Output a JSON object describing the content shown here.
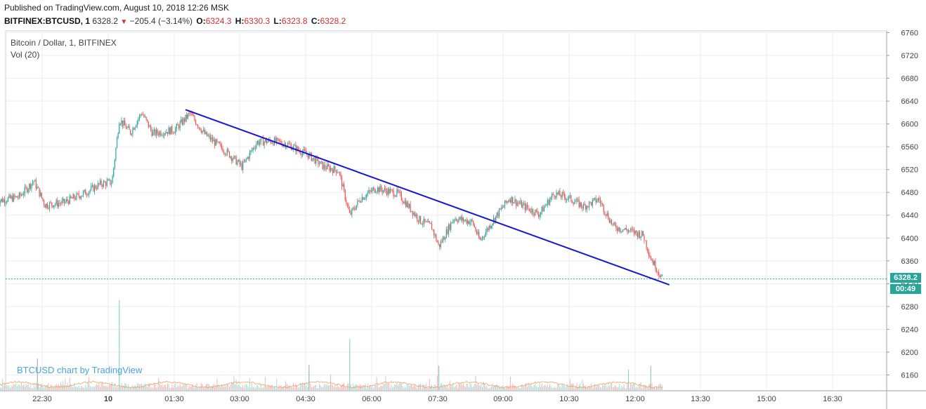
{
  "published": "Published on TradingView.com, August 10, 2018 12:26 MSK",
  "header": {
    "symbol": "BITFINEX:BTCUSD, 1",
    "last": "6328.2",
    "change": "−205.4 (−3.14%)",
    "open_label": "O:",
    "open": "6324.3",
    "high_label": "H:",
    "high": "6330.3",
    "low_label": "L:",
    "low": "6323.8",
    "close_label": "C:",
    "close": "6328.2"
  },
  "legend": {
    "series": "Bitcoin / Dollar, 1, BITFINEX",
    "volume": "Vol (20)"
  },
  "watermark": "BTCUSD chart by TradingView",
  "price_badge": "6328.2",
  "countdown_badge": "00:49",
  "colors": {
    "up": "#26a69a",
    "down": "#ef5350",
    "trendline": "#1515d6",
    "grid": "#e9eef2",
    "vol_ma": "#f0a060"
  },
  "chart_data": {
    "type": "candlestick",
    "title": "Bitcoin / Dollar, 1, BITFINEX",
    "interval": "1 minute",
    "x_ticks": [
      "22:30",
      "10",
      "01:30",
      "03:00",
      "04:30",
      "06:00",
      "07:30",
      "09:00",
      "10:30",
      "12:00",
      "13:30",
      "15:00",
      "16:30"
    ],
    "y_ticks": [
      6160,
      6200,
      6240,
      6280,
      6320,
      6360,
      6400,
      6440,
      6480,
      6520,
      6560,
      6600,
      6640,
      6680,
      6720,
      6760
    ],
    "ylim": [
      6140,
      6770
    ],
    "last_price": 6328.2,
    "price_path": [
      {
        "t": "21:30",
        "p": 6465
      },
      {
        "t": "22:00",
        "p": 6472
      },
      {
        "t": "22:20",
        "p": 6500
      },
      {
        "t": "22:35",
        "p": 6458
      },
      {
        "t": "23:00",
        "p": 6462
      },
      {
        "t": "23:30",
        "p": 6480
      },
      {
        "t": "23:50",
        "p": 6495
      },
      {
        "t": "00:05",
        "p": 6498
      },
      {
        "t": "00:15",
        "p": 6608
      },
      {
        "t": "00:30",
        "p": 6585
      },
      {
        "t": "00:45",
        "p": 6620
      },
      {
        "t": "01:00",
        "p": 6583
      },
      {
        "t": "01:30",
        "p": 6590
      },
      {
        "t": "01:50",
        "p": 6618
      },
      {
        "t": "02:10",
        "p": 6582
      },
      {
        "t": "02:40",
        "p": 6550
      },
      {
        "t": "03:00",
        "p": 6525
      },
      {
        "t": "03:20",
        "p": 6568
      },
      {
        "t": "03:40",
        "p": 6570
      },
      {
        "t": "04:00",
        "p": 6565
      },
      {
        "t": "04:30",
        "p": 6545
      },
      {
        "t": "04:50",
        "p": 6525
      },
      {
        "t": "05:10",
        "p": 6518
      },
      {
        "t": "05:25",
        "p": 6440
      },
      {
        "t": "05:40",
        "p": 6470
      },
      {
        "t": "06:00",
        "p": 6487
      },
      {
        "t": "06:30",
        "p": 6478
      },
      {
        "t": "07:00",
        "p": 6430
      },
      {
        "t": "07:15",
        "p": 6420
      },
      {
        "t": "07:25",
        "p": 6385
      },
      {
        "t": "07:45",
        "p": 6435
      },
      {
        "t": "08:10",
        "p": 6428
      },
      {
        "t": "08:20",
        "p": 6395
      },
      {
        "t": "08:40",
        "p": 6435
      },
      {
        "t": "09:00",
        "p": 6470
      },
      {
        "t": "09:20",
        "p": 6455
      },
      {
        "t": "09:40",
        "p": 6442
      },
      {
        "t": "10:00",
        "p": 6478
      },
      {
        "t": "10:20",
        "p": 6470
      },
      {
        "t": "10:40",
        "p": 6455
      },
      {
        "t": "11:00",
        "p": 6468
      },
      {
        "t": "11:20",
        "p": 6420
      },
      {
        "t": "11:40",
        "p": 6413
      },
      {
        "t": "12:00",
        "p": 6405
      },
      {
        "t": "12:10",
        "p": 6365
      },
      {
        "t": "12:26",
        "p": 6328
      }
    ],
    "trendline": {
      "from": {
        "t": "01:44",
        "p": 6625
      },
      "to": {
        "t": "12:35",
        "p": 6318
      }
    },
    "volume": {
      "label": "Vol (20)",
      "spikes": [
        {
          "t": "22:25",
          "v": 0.35
        },
        {
          "t": "00:15",
          "v": 1.0
        },
        {
          "t": "04:30",
          "v": 0.28
        },
        {
          "t": "05:25",
          "v": 0.57
        },
        {
          "t": "07:25",
          "v": 0.27
        },
        {
          "t": "11:40",
          "v": 0.23
        },
        {
          "t": "12:10",
          "v": 0.27
        }
      ]
    }
  }
}
